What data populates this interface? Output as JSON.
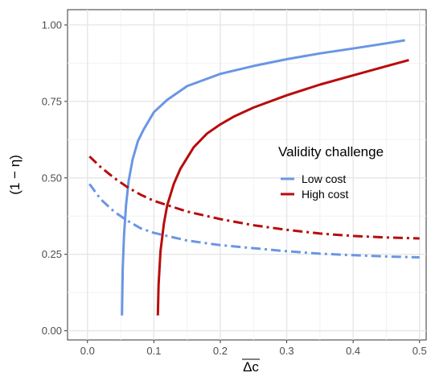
{
  "chart_data": {
    "type": "line",
    "xlabel": "Δc",
    "ylabel": "(1 − η)",
    "xlim": [
      -0.03,
      0.51
    ],
    "ylim": [
      -0.03,
      1.05
    ],
    "x_ticks": [
      0.0,
      0.1,
      0.2,
      0.3,
      0.4,
      0.5
    ],
    "x_tick_labels": [
      "0.0",
      "0.1",
      "0.2",
      "0.3",
      "0.4",
      "0.5"
    ],
    "y_ticks": [
      0.0,
      0.25,
      0.5,
      0.75,
      1.0
    ],
    "y_tick_labels": [
      "0.00",
      "0.25",
      "0.50",
      "0.75",
      "1.00"
    ],
    "grid": true,
    "legend": {
      "title": "Validity challenge",
      "placement": "right",
      "entries": [
        {
          "label": "Low cost",
          "color": "#6a96e4"
        },
        {
          "label": "High cost",
          "color": "#b80c0c"
        }
      ]
    },
    "series": [
      {
        "color": "#6a96e4",
        "style": "solid",
        "x": [
          0.052,
          0.053,
          0.055,
          0.058,
          0.062,
          0.068,
          0.076,
          0.085,
          0.1,
          0.12,
          0.15,
          0.2,
          0.25,
          0.3,
          0.35,
          0.4,
          0.45,
          0.478
        ],
        "y": [
          0.05,
          0.2,
          0.31,
          0.41,
          0.49,
          0.56,
          0.62,
          0.66,
          0.715,
          0.755,
          0.8,
          0.84,
          0.866,
          0.888,
          0.907,
          0.923,
          0.94,
          0.95
        ]
      },
      {
        "color": "#b80c0c",
        "style": "solid",
        "x": [
          0.106,
          0.107,
          0.11,
          0.115,
          0.12,
          0.13,
          0.14,
          0.16,
          0.18,
          0.2,
          0.22,
          0.25,
          0.3,
          0.35,
          0.4,
          0.45,
          0.484
        ],
        "y": [
          0.05,
          0.15,
          0.26,
          0.35,
          0.41,
          0.48,
          0.53,
          0.6,
          0.645,
          0.675,
          0.7,
          0.73,
          0.77,
          0.805,
          0.835,
          0.865,
          0.885
        ]
      },
      {
        "color": "#6a96e4",
        "style": "dashdot",
        "x": [
          0.003,
          0.02,
          0.04,
          0.06,
          0.08,
          0.1,
          0.15,
          0.2,
          0.25,
          0.3,
          0.35,
          0.4,
          0.45,
          0.5
        ],
        "y": [
          0.48,
          0.43,
          0.39,
          0.36,
          0.335,
          0.32,
          0.295,
          0.28,
          0.27,
          0.26,
          0.252,
          0.247,
          0.243,
          0.24
        ]
      },
      {
        "color": "#b80c0c",
        "style": "dashdot",
        "x": [
          0.003,
          0.02,
          0.04,
          0.06,
          0.08,
          0.1,
          0.15,
          0.2,
          0.25,
          0.3,
          0.35,
          0.4,
          0.45,
          0.5
        ],
        "y": [
          0.57,
          0.535,
          0.5,
          0.47,
          0.445,
          0.425,
          0.39,
          0.365,
          0.345,
          0.33,
          0.318,
          0.31,
          0.305,
          0.302
        ]
      }
    ]
  }
}
